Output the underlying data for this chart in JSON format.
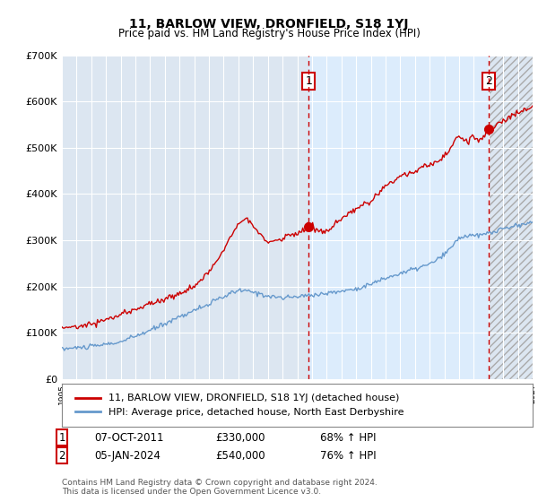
{
  "title": "11, BARLOW VIEW, DRONFIELD, S18 1YJ",
  "subtitle": "Price paid vs. HM Land Registry's House Price Index (HPI)",
  "red_line_label": "11, BARLOW VIEW, DRONFIELD, S18 1YJ (detached house)",
  "blue_line_label": "HPI: Average price, detached house, North East Derbyshire",
  "annotation1_label": "1",
  "annotation1_date": "07-OCT-2011",
  "annotation1_price": "£330,000",
  "annotation1_hpi": "68% ↑ HPI",
  "annotation2_label": "2",
  "annotation2_date": "05-JAN-2024",
  "annotation2_price": "£540,000",
  "annotation2_hpi": "76% ↑ HPI",
  "footer": "Contains HM Land Registry data © Crown copyright and database right 2024.\nThis data is licensed under the Open Government Licence v3.0.",
  "ylim": [
    0,
    700000
  ],
  "yticks": [
    0,
    100000,
    200000,
    300000,
    400000,
    500000,
    600000,
    700000
  ],
  "ytick_labels": [
    "£0",
    "£100K",
    "£200K",
    "£300K",
    "£400K",
    "£500K",
    "£600K",
    "£700K"
  ],
  "vline1_x": 2011.77,
  "vline2_x": 2024.02,
  "marker1_x": 2011.77,
  "marker1_y": 330000,
  "marker2_x": 2024.02,
  "marker2_y": 540000,
  "xmin": 1995,
  "xmax": 2027,
  "red_color": "#cc0000",
  "blue_color": "#6699cc",
  "vline_color": "#cc0000",
  "shade_color": "#ddeeff",
  "plot_bg_color": "#dce6f1"
}
